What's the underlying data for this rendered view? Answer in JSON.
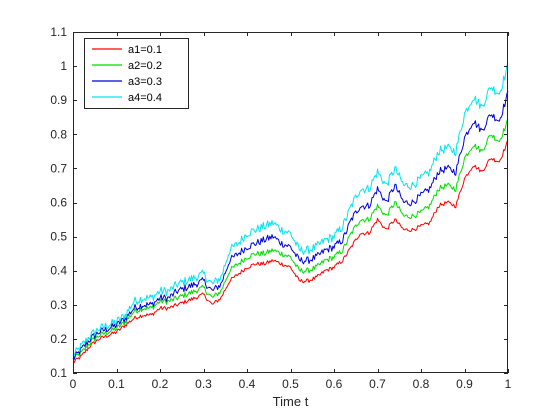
{
  "chart_data": {
    "type": "line",
    "title": "",
    "xlabel": "Time t",
    "ylabel": "",
    "xlim": [
      0,
      1
    ],
    "ylim": [
      0.1,
      1.1
    ],
    "xticks": [
      0,
      0.1,
      0.2,
      0.3,
      0.4,
      0.5,
      0.6,
      0.7,
      0.8,
      0.9,
      1
    ],
    "xtick_labels": [
      "0",
      "0.1",
      "0.2",
      "0.3",
      "0.4",
      "0.5",
      "0.6",
      "0.7",
      "0.8",
      "0.9",
      "1"
    ],
    "yticks": [
      0.1,
      0.2,
      0.3,
      0.4,
      0.5,
      0.6,
      0.7,
      0.8,
      0.9,
      1,
      1.1
    ],
    "ytick_labels": [
      "0.1",
      "0.2",
      "0.3",
      "0.4",
      "0.5",
      "0.6",
      "0.7",
      "0.8",
      "0.9",
      "1",
      "1.1"
    ],
    "grid": false,
    "legend_position": "top-left",
    "x": [
      0,
      0.02,
      0.04,
      0.06,
      0.08,
      0.1,
      0.12,
      0.14,
      0.16,
      0.18,
      0.2,
      0.22,
      0.24,
      0.26,
      0.28,
      0.3,
      0.32,
      0.34,
      0.36,
      0.38,
      0.4,
      0.42,
      0.44,
      0.46,
      0.48,
      0.5,
      0.52,
      0.54,
      0.56,
      0.58,
      0.6,
      0.62,
      0.64,
      0.66,
      0.68,
      0.7,
      0.72,
      0.74,
      0.76,
      0.78,
      0.8,
      0.82,
      0.84,
      0.86,
      0.88,
      0.9,
      0.92,
      0.94,
      0.96,
      0.98,
      1.0
    ],
    "series": [
      {
        "name": "a1=0.1",
        "color": "#ff0000",
        "values": [
          0.13,
          0.15,
          0.18,
          0.2,
          0.21,
          0.22,
          0.24,
          0.26,
          0.27,
          0.27,
          0.29,
          0.29,
          0.3,
          0.31,
          0.32,
          0.33,
          0.3,
          0.32,
          0.37,
          0.39,
          0.41,
          0.42,
          0.42,
          0.43,
          0.42,
          0.41,
          0.37,
          0.37,
          0.38,
          0.4,
          0.41,
          0.43,
          0.47,
          0.51,
          0.51,
          0.55,
          0.52,
          0.55,
          0.52,
          0.52,
          0.53,
          0.54,
          0.59,
          0.6,
          0.59,
          0.67,
          0.71,
          0.69,
          0.73,
          0.72,
          0.78
        ]
      },
      {
        "name": "a2=0.2",
        "color": "#00dd00",
        "values": [
          0.14,
          0.16,
          0.19,
          0.21,
          0.22,
          0.23,
          0.25,
          0.28,
          0.29,
          0.29,
          0.31,
          0.31,
          0.32,
          0.33,
          0.34,
          0.35,
          0.32,
          0.34,
          0.4,
          0.42,
          0.44,
          0.45,
          0.45,
          0.46,
          0.45,
          0.44,
          0.4,
          0.4,
          0.41,
          0.43,
          0.44,
          0.46,
          0.51,
          0.55,
          0.55,
          0.59,
          0.56,
          0.6,
          0.56,
          0.56,
          0.57,
          0.59,
          0.64,
          0.65,
          0.64,
          0.73,
          0.77,
          0.75,
          0.8,
          0.78,
          0.84
        ]
      },
      {
        "name": "a3=0.3",
        "color": "#0000dd",
        "values": [
          0.14,
          0.17,
          0.2,
          0.22,
          0.23,
          0.24,
          0.26,
          0.29,
          0.3,
          0.3,
          0.32,
          0.32,
          0.34,
          0.35,
          0.36,
          0.37,
          0.34,
          0.36,
          0.43,
          0.45,
          0.47,
          0.48,
          0.49,
          0.5,
          0.48,
          0.47,
          0.43,
          0.43,
          0.44,
          0.46,
          0.47,
          0.49,
          0.55,
          0.59,
          0.59,
          0.64,
          0.6,
          0.65,
          0.6,
          0.6,
          0.62,
          0.64,
          0.69,
          0.7,
          0.69,
          0.79,
          0.84,
          0.81,
          0.86,
          0.84,
          0.92
        ]
      },
      {
        "name": "a4=0.4",
        "color": "#00e5ee",
        "values": [
          0.15,
          0.18,
          0.21,
          0.23,
          0.24,
          0.25,
          0.27,
          0.31,
          0.32,
          0.32,
          0.34,
          0.34,
          0.36,
          0.37,
          0.38,
          0.39,
          0.36,
          0.38,
          0.46,
          0.48,
          0.51,
          0.52,
          0.53,
          0.54,
          0.52,
          0.51,
          0.46,
          0.46,
          0.47,
          0.49,
          0.5,
          0.53,
          0.59,
          0.64,
          0.64,
          0.69,
          0.65,
          0.7,
          0.65,
          0.65,
          0.67,
          0.69,
          0.75,
          0.76,
          0.75,
          0.86,
          0.91,
          0.88,
          0.94,
          0.92,
          1.0
        ]
      }
    ]
  }
}
